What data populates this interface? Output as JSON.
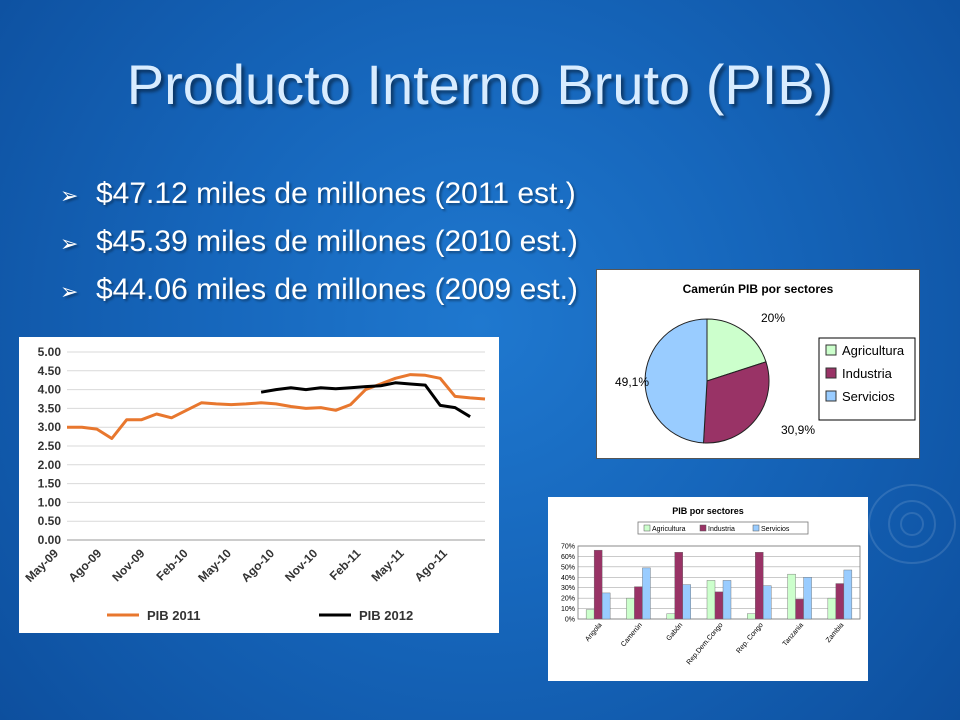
{
  "slide": {
    "title": "Producto Interno Bruto (PIB)",
    "bullets": [
      "$47.12 miles de millones (2011 est.)",
      "$45.39 miles de millones (2010 est.)",
      "$44.06 miles de millones (2009 est.)"
    ],
    "bullet_icon": "arrow-right-icon"
  },
  "chart_data": [
    {
      "type": "line",
      "title": "",
      "xlabel": "",
      "ylabel": "",
      "ylim": [
        0,
        5
      ],
      "yticks": [
        "5.00",
        "4.50",
        "4.00",
        "3.50",
        "3.00",
        "2.50",
        "2.00",
        "1.50",
        "1.00",
        "0.50",
        "0.00"
      ],
      "x_tick_labels": [
        "May-09",
        "Ago-09",
        "Nov-09",
        "Feb-10",
        "May-10",
        "Ago-10",
        "Nov-10",
        "Feb-11",
        "May-11",
        "Ago-11"
      ],
      "grid": true,
      "legend_position": "bottom",
      "series": [
        {
          "name": "PIB 2011",
          "color": "#e8772e",
          "x": [
            0,
            1,
            2,
            3,
            4,
            5,
            6,
            7,
            8,
            9,
            10,
            11,
            12,
            13,
            14,
            15,
            16,
            17,
            18,
            19,
            20,
            21,
            22,
            23,
            24,
            25,
            26,
            27,
            28
          ],
          "values": [
            3.0,
            3.0,
            2.95,
            2.7,
            3.2,
            3.2,
            3.35,
            3.25,
            3.45,
            3.65,
            3.62,
            3.6,
            3.62,
            3.65,
            3.62,
            3.55,
            3.5,
            3.52,
            3.45,
            3.6,
            4.0,
            4.15,
            4.3,
            4.4,
            4.38,
            4.3,
            3.82,
            3.78,
            3.75
          ]
        },
        {
          "name": "PIB 2012",
          "color": "#000000",
          "x": [
            13,
            14,
            15,
            16,
            17,
            18,
            19,
            20,
            21,
            22,
            23,
            24,
            25,
            26,
            27
          ],
          "values": [
            3.93,
            4.0,
            4.05,
            4.0,
            4.05,
            4.02,
            4.05,
            4.08,
            4.1,
            4.18,
            4.15,
            4.12,
            3.58,
            3.52,
            3.28
          ]
        }
      ]
    },
    {
      "type": "pie",
      "title": "Camerún PIB por sectores",
      "slices": [
        {
          "label": "Agricultura",
          "value": 20,
          "display": "20%",
          "color": "#ccffcc"
        },
        {
          "label": "Industria",
          "value": 30.9,
          "display": "30,9%",
          "color": "#993366"
        },
        {
          "label": "Servicios",
          "value": 49.1,
          "display": "49,1%",
          "color": "#99ccff"
        }
      ],
      "legend_position": "right"
    },
    {
      "type": "bar",
      "title": "PIB por sectores",
      "categories": [
        "Angola",
        "Camerún",
        "Gabón",
        "Rep.Dem.Congo",
        "Rep. Congo",
        "Tanzania",
        "Zambia"
      ],
      "ylim": [
        0,
        70
      ],
      "yticks": [
        "70%",
        "60%",
        "50%",
        "40%",
        "30%",
        "20%",
        "10%",
        "0%"
      ],
      "grid": true,
      "legend_position": "top",
      "series": [
        {
          "name": "Agricultura",
          "color": "#ccffcc",
          "values": [
            9,
            20,
            5,
            37,
            5,
            43,
            20
          ]
        },
        {
          "name": "Industria",
          "color": "#993366",
          "values": [
            66,
            31,
            64,
            26,
            64,
            19,
            34
          ]
        },
        {
          "name": "Servicios",
          "color": "#99ccff",
          "values": [
            25,
            49,
            33,
            37,
            32,
            40,
            47
          ]
        }
      ]
    }
  ]
}
